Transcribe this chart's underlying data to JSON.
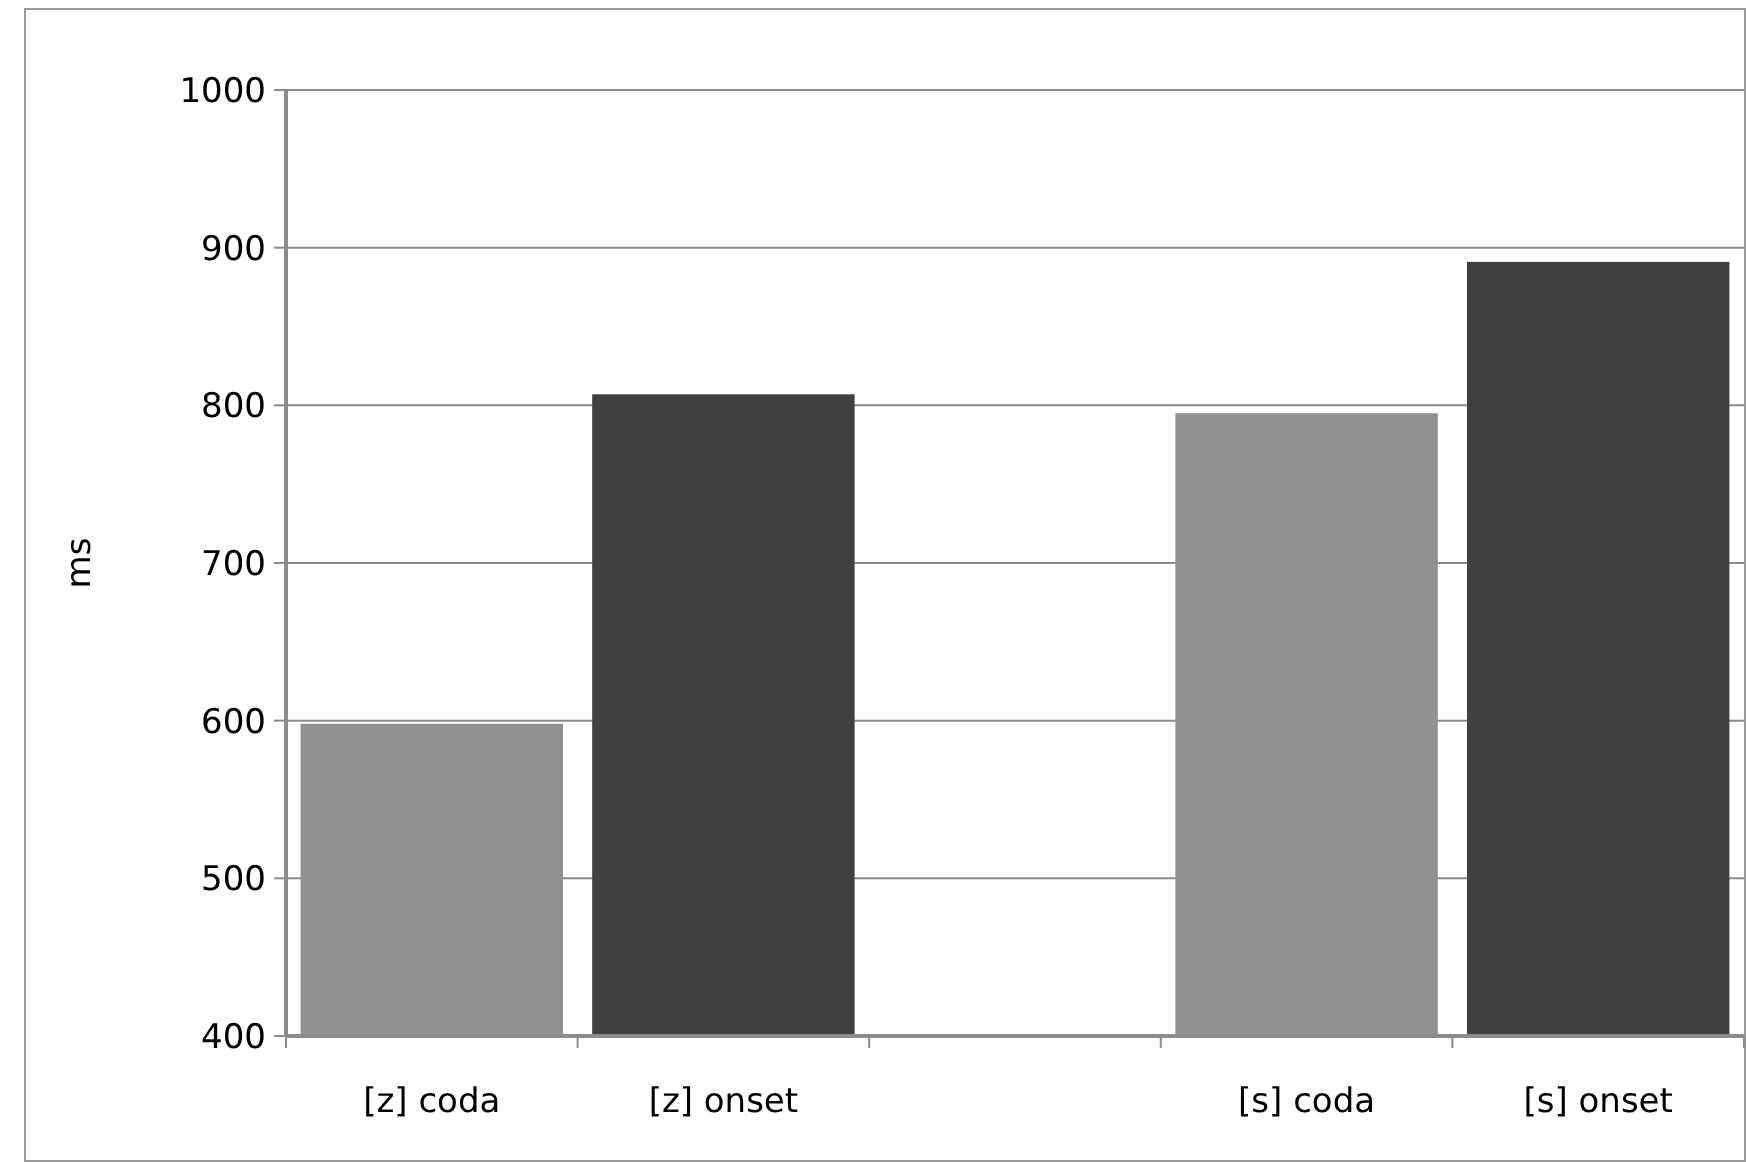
{
  "chart_data": {
    "type": "bar",
    "ylabel": "ms",
    "categories": [
      "[z] coda",
      "[z] onset",
      null,
      "[s] coda",
      "[s] onset"
    ],
    "values": [
      598,
      807,
      null,
      795,
      891
    ],
    "colors": [
      "#919191",
      "#404040",
      null,
      "#919191",
      "#404040"
    ],
    "ylim": [
      400,
      1000
    ],
    "yticks": [
      400,
      500,
      600,
      700,
      800,
      900,
      1000
    ],
    "grid": "y"
  }
}
